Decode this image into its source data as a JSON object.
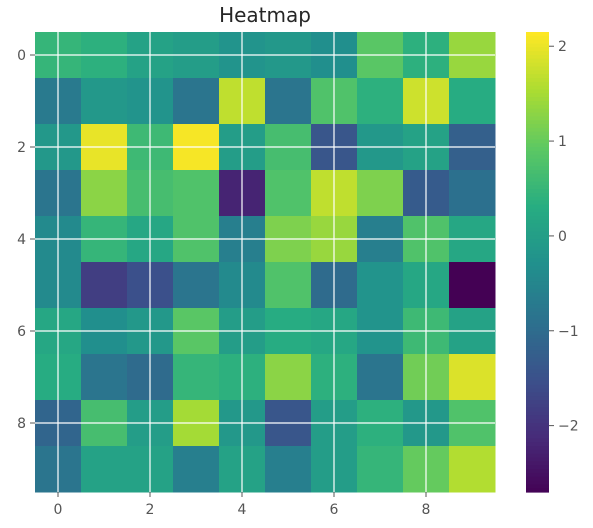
{
  "chart_data": {
    "type": "heatmap",
    "title": "Heatmap",
    "xlabel": "",
    "ylabel": "",
    "x_ticks": [
      0,
      2,
      4,
      6,
      8
    ],
    "y_ticks": [
      0,
      2,
      4,
      6,
      8
    ],
    "grid": true,
    "colormap": "viridis",
    "vmin": -2.7,
    "vmax": 2.15,
    "colorbar": {
      "ticks": [
        2,
        1,
        0,
        -1,
        -2
      ],
      "labels": [
        "2",
        "1",
        "0",
        "−1",
        "−2"
      ],
      "placement": "right"
    },
    "values": [
      [
        0.5,
        0.4,
        0.1,
        0.0,
        -0.2,
        -0.1,
        -0.3,
        0.9,
        0.4,
        1.4
      ],
      [
        -0.7,
        -0.1,
        -0.2,
        -0.8,
        1.7,
        -0.8,
        0.8,
        0.4,
        1.8,
        0.3
      ],
      [
        -0.1,
        2.0,
        0.6,
        2.1,
        0.0,
        0.7,
        -1.4,
        -0.1,
        0.1,
        -1.2
      ],
      [
        -0.8,
        1.3,
        0.7,
        0.8,
        -2.2,
        0.8,
        1.7,
        1.2,
        -1.3,
        -0.9
      ],
      [
        -0.4,
        0.5,
        0.2,
        0.8,
        -0.6,
        1.2,
        1.4,
        -0.6,
        0.8,
        0.2
      ],
      [
        -0.4,
        -1.8,
        -1.5,
        -0.8,
        -0.4,
        0.8,
        -1.0,
        -0.2,
        0.2,
        -2.7
      ],
      [
        0.2,
        -0.3,
        -0.1,
        0.9,
        0.0,
        0.3,
        0.2,
        -0.2,
        0.6,
        0.1
      ],
      [
        0.3,
        -0.8,
        -1.0,
        0.5,
        0.4,
        1.3,
        0.4,
        -0.8,
        1.1,
        1.9
      ],
      [
        -1.1,
        0.7,
        0.0,
        1.5,
        -0.1,
        -1.4,
        0.0,
        0.4,
        -0.1,
        0.8
      ],
      [
        -0.8,
        0.1,
        0.1,
        -0.6,
        0.1,
        -0.6,
        0.0,
        0.5,
        1.0,
        1.6
      ]
    ]
  }
}
